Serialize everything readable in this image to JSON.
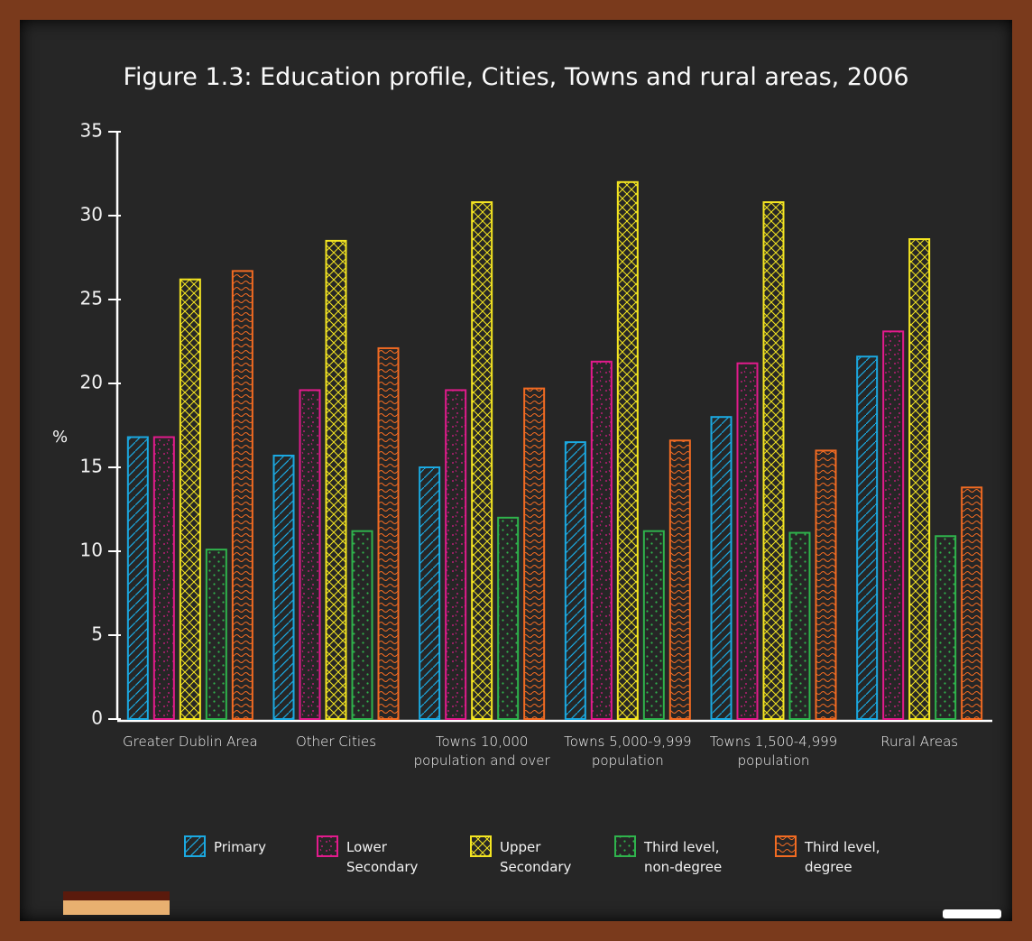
{
  "chart_data": {
    "type": "bar",
    "title": "Figure 1.3: Education profile, Cities, Towns and rural areas, 2006",
    "y_label": "%",
    "categories": [
      "Greater Dublin Area",
      "Other Cities",
      "Towns 10,000 population and over",
      "Towns 5,000-9,999 population",
      "Towns 1,500-4,999 population",
      "Rural Areas"
    ],
    "series": [
      {
        "name": "Primary",
        "color": "#1ba9e1",
        "values": [
          16.8,
          15.7,
          15.0,
          16.5,
          18.0,
          21.6
        ]
      },
      {
        "name": "Lower Secondary",
        "color": "#e21b8c",
        "values": [
          16.8,
          19.6,
          19.6,
          21.3,
          21.2,
          23.1
        ]
      },
      {
        "name": "Upper Secondary",
        "color": "#f4e521",
        "values": [
          26.2,
          28.5,
          30.8,
          32.0,
          30.8,
          28.6
        ]
      },
      {
        "name": "Third level, non-degree",
        "color": "#2fb34c",
        "values": [
          10.1,
          11.2,
          12.0,
          11.2,
          11.1,
          10.9
        ]
      },
      {
        "name": "Third level, degree",
        "color": "#f26b22",
        "values": [
          26.7,
          22.1,
          19.7,
          16.6,
          16.0,
          13.8
        ]
      }
    ],
    "ylim": [
      0,
      35
    ],
    "yticks": [
      0,
      5,
      10,
      15,
      20,
      25,
      30,
      35
    ]
  }
}
